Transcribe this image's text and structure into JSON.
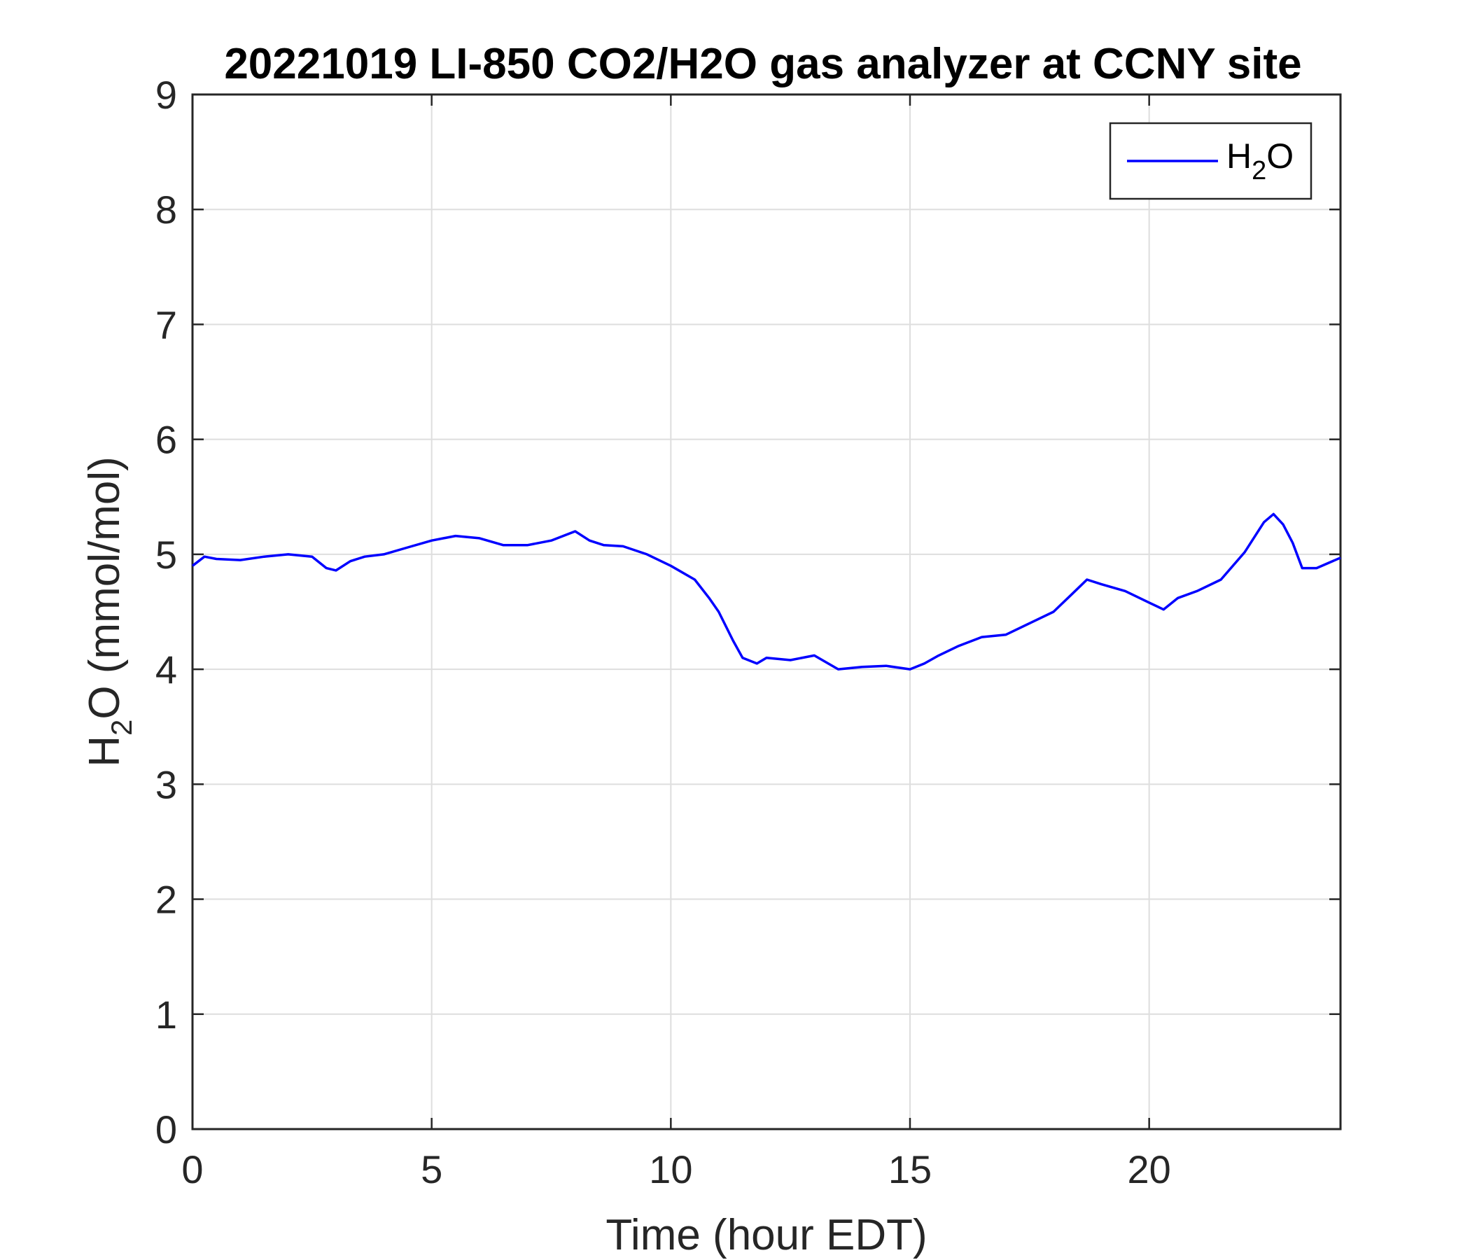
{
  "chart_data": {
    "type": "line",
    "title": "20221019 LI-850 CO2/H2O gas analyzer at CCNY site",
    "xlabel": "Time (hour EDT)",
    "ylabel": {
      "base": "H",
      "sub": "2",
      "rest": "O (mmol/mol)"
    },
    "xlim": [
      0,
      24
    ],
    "ylim": [
      0,
      9
    ],
    "xticks": [
      0,
      5,
      10,
      15,
      20
    ],
    "yticks": [
      0,
      1,
      2,
      3,
      4,
      5,
      6,
      7,
      8,
      9
    ],
    "grid": true,
    "legend_position": "top-right",
    "series": [
      {
        "name": {
          "base": "H",
          "sub": "2",
          "rest": "O"
        },
        "color": "#0000ff",
        "x": [
          0,
          0.25,
          0.5,
          1,
          1.5,
          2,
          2.5,
          2.8,
          3,
          3.3,
          3.6,
          4,
          4.5,
          5,
          5.5,
          6,
          6.5,
          7,
          7.5,
          8,
          8.3,
          8.6,
          9,
          9.5,
          10,
          10.5,
          10.8,
          11,
          11.3,
          11.5,
          11.8,
          12,
          12.5,
          13,
          13.5,
          14,
          14.5,
          15,
          15.3,
          15.6,
          16,
          16.5,
          17,
          17.5,
          18,
          18.5,
          18.7,
          19,
          19.5,
          20,
          20.3,
          20.6,
          21,
          21.5,
          22,
          22.4,
          22.6,
          22.8,
          23,
          23.2,
          23.5,
          24
        ],
        "y": [
          4.9,
          4.98,
          4.96,
          4.95,
          4.98,
          5.0,
          4.98,
          4.88,
          4.86,
          4.94,
          4.98,
          5.0,
          5.06,
          5.12,
          5.16,
          5.14,
          5.08,
          5.08,
          5.12,
          5.2,
          5.12,
          5.08,
          5.07,
          5.0,
          4.9,
          4.78,
          4.62,
          4.5,
          4.25,
          4.1,
          4.05,
          4.1,
          4.08,
          4.12,
          4.0,
          4.02,
          4.03,
          4.0,
          4.05,
          4.12,
          4.2,
          4.28,
          4.3,
          4.4,
          4.5,
          4.7,
          4.78,
          4.74,
          4.68,
          4.58,
          4.52,
          4.62,
          4.68,
          4.78,
          5.02,
          5.28,
          5.35,
          5.26,
          5.1,
          4.88,
          4.88,
          4.97
        ]
      }
    ]
  }
}
